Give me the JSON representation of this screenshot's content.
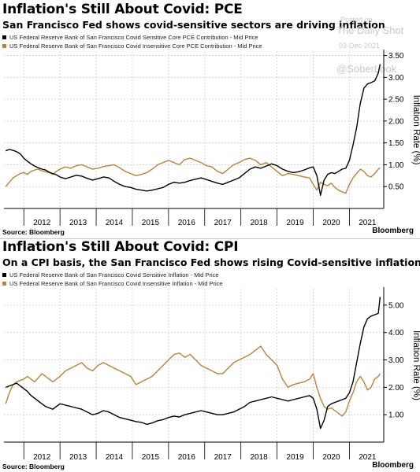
{
  "panels": [
    {
      "title": "Inflation's Still About Covid: PCE",
      "subtitle": "San Francisco Fed shows covid-sensitive sectors are driving inflation",
      "source": "Source: Bloomberg",
      "brand": "Bloomberg",
      "watermark": {
        "line1": "Posted on",
        "line2": "The Daily Shot",
        "line3": "03-Dec-2021",
        "line4": "@SoberLook"
      }
    },
    {
      "title": "Inflation's Still About Covid: CPI",
      "subtitle": "On a CPI basis, the San Francisco Fed shows rising Covid-sensitive inflation",
      "source": "Source: Bloomberg",
      "brand": "Bloomberg"
    }
  ],
  "colors": {
    "sensitive": "#000000",
    "insensitive": "#b8833a",
    "grid": "#cfcfcf"
  },
  "chart_data": [
    {
      "type": "line",
      "title": "Inflation's Still About Covid: PCE",
      "subtitle": "San Francisco Fed shows covid-sensitive sectors are driving inflation",
      "ylabel": "Inflation Rate (%)",
      "ylim": [
        0.0,
        3.6
      ],
      "xlim": [
        2011.45,
        2021.95
      ],
      "x_ticks": [
        "2012",
        "2013",
        "2014",
        "2015",
        "2016",
        "2017",
        "2018",
        "2019",
        "2020",
        "2021"
      ],
      "y_ticks": [
        0.5,
        1.0,
        1.5,
        2.0,
        2.5,
        3.0,
        3.5
      ],
      "y_tick_labels": [
        "0.50",
        "1.00",
        "1.50",
        "2.00",
        "2.50",
        "3.00",
        "3.50"
      ],
      "grid": true,
      "legend_position": "top-left",
      "series": [
        {
          "name": "US Federal Reserve Bank of San Francisco Covid Sensitive Core PCE Contribution - Mid Price",
          "x": [
            2011.5,
            2011.6,
            2011.7,
            2011.8,
            2011.9,
            2012.0,
            2012.1,
            2012.2,
            2012.3,
            2012.4,
            2012.5,
            2012.6,
            2012.7,
            2012.8,
            2012.9,
            2013.0,
            2013.15,
            2013.3,
            2013.45,
            2013.6,
            2013.75,
            2013.9,
            2014.05,
            2014.2,
            2014.35,
            2014.5,
            2014.65,
            2014.8,
            2014.95,
            2015.1,
            2015.25,
            2015.4,
            2015.55,
            2015.7,
            2015.85,
            2016.0,
            2016.15,
            2016.3,
            2016.45,
            2016.6,
            2016.75,
            2016.9,
            2017.05,
            2017.2,
            2017.35,
            2017.5,
            2017.65,
            2017.8,
            2017.95,
            2018.1,
            2018.25,
            2018.4,
            2018.55,
            2018.7,
            2018.85,
            2019.0,
            2019.15,
            2019.3,
            2019.45,
            2019.6,
            2019.75,
            2019.9,
            2020.0,
            2020.1,
            2020.2,
            2020.3,
            2020.4,
            2020.5,
            2020.6,
            2020.7,
            2020.8,
            2020.9,
            2021.0,
            2021.1,
            2021.2,
            2021.3,
            2021.4,
            2021.5,
            2021.6,
            2021.7,
            2021.8,
            2021.85
          ],
          "values": [
            1.32,
            1.35,
            1.33,
            1.3,
            1.25,
            1.15,
            1.08,
            1.02,
            0.97,
            0.93,
            0.9,
            0.88,
            0.83,
            0.8,
            0.77,
            0.72,
            0.68,
            0.72,
            0.76,
            0.74,
            0.69,
            0.65,
            0.68,
            0.72,
            0.7,
            0.62,
            0.55,
            0.5,
            0.48,
            0.44,
            0.42,
            0.4,
            0.42,
            0.45,
            0.48,
            0.55,
            0.6,
            0.58,
            0.6,
            0.64,
            0.67,
            0.7,
            0.66,
            0.62,
            0.58,
            0.55,
            0.6,
            0.65,
            0.7,
            0.8,
            0.9,
            0.95,
            0.92,
            0.97,
            1.02,
            0.98,
            0.9,
            0.85,
            0.82,
            0.84,
            0.88,
            0.93,
            0.95,
            0.75,
            0.3,
            0.65,
            0.78,
            0.82,
            0.8,
            0.85,
            0.9,
            0.92,
            1.1,
            1.45,
            1.85,
            2.4,
            2.75,
            2.85,
            2.88,
            2.92,
            3.1,
            3.3
          ]
        },
        {
          "name": "US Federal Reserve Bank of San Francisco Covid Insensitive Core PCE Contribution - Mid Price",
          "x": [
            2011.5,
            2011.6,
            2011.7,
            2011.8,
            2011.9,
            2012.0,
            2012.1,
            2012.2,
            2012.3,
            2012.4,
            2012.5,
            2012.6,
            2012.7,
            2012.8,
            2012.9,
            2013.0,
            2013.15,
            2013.3,
            2013.45,
            2013.6,
            2013.75,
            2013.9,
            2014.05,
            2014.2,
            2014.35,
            2014.5,
            2014.65,
            2014.8,
            2014.95,
            2015.1,
            2015.25,
            2015.4,
            2015.55,
            2015.7,
            2015.85,
            2016.0,
            2016.15,
            2016.3,
            2016.45,
            2016.6,
            2016.75,
            2016.9,
            2017.05,
            2017.2,
            2017.35,
            2017.5,
            2017.65,
            2017.8,
            2017.95,
            2018.1,
            2018.25,
            2018.4,
            2018.55,
            2018.7,
            2018.85,
            2019.0,
            2019.15,
            2019.3,
            2019.45,
            2019.6,
            2019.75,
            2019.9,
            2020.0,
            2020.1,
            2020.2,
            2020.3,
            2020.4,
            2020.5,
            2020.6,
            2020.7,
            2020.8,
            2020.9,
            2021.0,
            2021.1,
            2021.2,
            2021.3,
            2021.4,
            2021.5,
            2021.6,
            2021.7,
            2021.8,
            2021.85
          ],
          "values": [
            0.5,
            0.6,
            0.7,
            0.75,
            0.8,
            0.82,
            0.78,
            0.85,
            0.88,
            0.9,
            0.86,
            0.84,
            0.82,
            0.78,
            0.85,
            0.9,
            0.95,
            0.92,
            0.98,
            1.0,
            0.95,
            0.9,
            0.92,
            0.96,
            0.98,
            1.0,
            0.93,
            0.85,
            0.8,
            0.75,
            0.78,
            0.82,
            0.9,
            1.0,
            1.05,
            1.1,
            1.05,
            1.0,
            1.12,
            1.15,
            1.1,
            1.05,
            0.98,
            0.95,
            0.85,
            0.8,
            0.9,
            1.0,
            1.05,
            1.12,
            1.15,
            1.1,
            1.0,
            1.05,
            0.95,
            0.85,
            0.75,
            0.8,
            0.78,
            0.75,
            0.72,
            0.7,
            0.55,
            0.42,
            0.6,
            0.55,
            0.52,
            0.58,
            0.48,
            0.42,
            0.38,
            0.35,
            0.55,
            0.7,
            0.8,
            0.9,
            0.85,
            0.75,
            0.72,
            0.8,
            0.9,
            0.93
          ]
        }
      ]
    },
    {
      "type": "line",
      "title": "Inflation's Still About Covid: CPI",
      "subtitle": "On a CPI basis, the San Francisco Fed shows rising Covid-sensitive inflation",
      "ylabel": "Inflation Rate (%)",
      "ylim": [
        0.0,
        5.6
      ],
      "xlim": [
        2011.45,
        2021.95
      ],
      "x_ticks": [
        "2012",
        "2013",
        "2014",
        "2015",
        "2016",
        "2017",
        "2018",
        "2019",
        "2020",
        "2021"
      ],
      "y_ticks": [
        1.0,
        2.0,
        3.0,
        4.0,
        5.0
      ],
      "y_tick_labels": [
        "1.00",
        "2.00",
        "3.00",
        "4.00",
        "5.00"
      ],
      "grid": true,
      "legend_position": "top-left",
      "series": [
        {
          "name": "US Federal Reserve Bank of San Francisco Covid Sensitive Inflation - Mid Price",
          "x": [
            2011.5,
            2011.6,
            2011.7,
            2011.8,
            2011.9,
            2012.0,
            2012.1,
            2012.2,
            2012.3,
            2012.4,
            2012.5,
            2012.6,
            2012.7,
            2012.8,
            2012.9,
            2013.0,
            2013.15,
            2013.3,
            2013.45,
            2013.6,
            2013.75,
            2013.9,
            2014.05,
            2014.2,
            2014.35,
            2014.5,
            2014.65,
            2014.8,
            2014.95,
            2015.1,
            2015.25,
            2015.4,
            2015.55,
            2015.7,
            2015.85,
            2016.0,
            2016.15,
            2016.3,
            2016.45,
            2016.6,
            2016.75,
            2016.9,
            2017.05,
            2017.2,
            2017.35,
            2017.5,
            2017.65,
            2017.8,
            2017.95,
            2018.1,
            2018.25,
            2018.4,
            2018.55,
            2018.7,
            2018.85,
            2019.0,
            2019.15,
            2019.3,
            2019.45,
            2019.6,
            2019.75,
            2019.9,
            2020.0,
            2020.1,
            2020.2,
            2020.3,
            2020.4,
            2020.5,
            2020.6,
            2020.7,
            2020.8,
            2020.9,
            2021.0,
            2021.1,
            2021.2,
            2021.3,
            2021.4,
            2021.5,
            2021.6,
            2021.7,
            2021.8,
            2021.85
          ],
          "values": [
            2.0,
            2.05,
            2.1,
            2.15,
            2.05,
            1.95,
            1.85,
            1.7,
            1.6,
            1.5,
            1.4,
            1.3,
            1.25,
            1.2,
            1.3,
            1.4,
            1.35,
            1.3,
            1.25,
            1.2,
            1.1,
            1.0,
            1.05,
            1.15,
            1.1,
            1.0,
            0.9,
            0.85,
            0.8,
            0.75,
            0.72,
            0.65,
            0.7,
            0.78,
            0.82,
            0.9,
            0.95,
            0.92,
            1.0,
            1.05,
            1.1,
            1.15,
            1.1,
            1.05,
            1.0,
            1.0,
            1.05,
            1.1,
            1.2,
            1.3,
            1.45,
            1.5,
            1.55,
            1.6,
            1.65,
            1.6,
            1.55,
            1.5,
            1.55,
            1.6,
            1.65,
            1.7,
            1.6,
            1.2,
            0.5,
            0.8,
            1.3,
            1.4,
            1.45,
            1.5,
            1.55,
            1.6,
            1.8,
            2.2,
            2.9,
            3.6,
            4.2,
            4.5,
            4.6,
            4.65,
            4.7,
            5.3
          ]
        },
        {
          "name": "US Federal Reserve Bank of San Francisco Covid Insensitive Inflation - Mid Price",
          "x": [
            2011.5,
            2011.6,
            2011.7,
            2011.8,
            2011.9,
            2012.0,
            2012.1,
            2012.2,
            2012.3,
            2012.4,
            2012.5,
            2012.6,
            2012.7,
            2012.8,
            2012.9,
            2013.0,
            2013.15,
            2013.3,
            2013.45,
            2013.6,
            2013.75,
            2013.9,
            2014.05,
            2014.2,
            2014.35,
            2014.5,
            2014.65,
            2014.8,
            2014.95,
            2015.1,
            2015.25,
            2015.4,
            2015.55,
            2015.7,
            2015.85,
            2016.0,
            2016.15,
            2016.3,
            2016.45,
            2016.6,
            2016.75,
            2016.9,
            2017.05,
            2017.2,
            2017.35,
            2017.5,
            2017.65,
            2017.8,
            2017.95,
            2018.1,
            2018.25,
            2018.4,
            2018.55,
            2018.7,
            2018.85,
            2019.0,
            2019.15,
            2019.3,
            2019.45,
            2019.6,
            2019.75,
            2019.9,
            2020.0,
            2020.1,
            2020.2,
            2020.3,
            2020.4,
            2020.5,
            2020.6,
            2020.7,
            2020.8,
            2020.9,
            2021.0,
            2021.1,
            2021.2,
            2021.3,
            2021.4,
            2021.5,
            2021.6,
            2021.7,
            2021.8,
            2021.85
          ],
          "values": [
            1.4,
            1.8,
            2.1,
            2.2,
            2.25,
            2.3,
            2.4,
            2.3,
            2.2,
            2.35,
            2.5,
            2.4,
            2.3,
            2.2,
            2.3,
            2.4,
            2.6,
            2.7,
            2.8,
            2.9,
            2.7,
            2.6,
            2.8,
            2.9,
            2.8,
            2.7,
            2.6,
            2.5,
            2.4,
            2.1,
            2.2,
            2.3,
            2.4,
            2.6,
            2.8,
            3.0,
            3.2,
            3.25,
            3.1,
            3.2,
            3.0,
            2.8,
            2.7,
            2.6,
            2.5,
            2.5,
            2.7,
            2.9,
            3.0,
            3.1,
            3.2,
            3.35,
            3.5,
            3.2,
            3.0,
            2.8,
            2.3,
            2.0,
            2.1,
            2.15,
            2.2,
            2.3,
            2.5,
            2.0,
            1.6,
            1.3,
            1.2,
            1.25,
            1.15,
            1.05,
            0.95,
            1.1,
            1.5,
            1.8,
            2.2,
            2.4,
            2.2,
            1.9,
            2.0,
            2.3,
            2.4,
            2.5
          ]
        }
      ]
    }
  ]
}
